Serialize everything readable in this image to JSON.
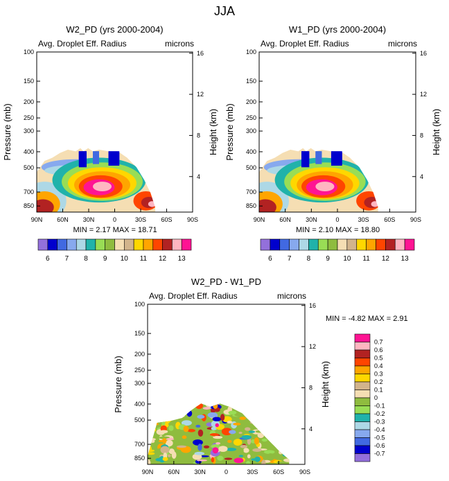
{
  "page_title": "JJA",
  "chart_data": [
    {
      "type": "contour",
      "title": "W2_PD (yrs 2000-2004)",
      "subtitle_left": "Avg. Droplet Eff. Radius",
      "subtitle_right": "microns",
      "ylabel": "Pressure (mb)",
      "y2label": "Height (km)",
      "x_ticks": [
        "90N",
        "60N",
        "30N",
        "0",
        "30S",
        "60S",
        "90S"
      ],
      "y_ticks": [
        "100",
        "150",
        "200",
        "250",
        "300",
        "400",
        "500",
        "700",
        "850"
      ],
      "y2_ticks": [
        "16",
        "12",
        "8",
        "4"
      ],
      "stats": {
        "min_label": "MIN =",
        "min": "2.17",
        "max_label": "MAX =",
        "max": "18.71"
      }
    },
    {
      "type": "contour",
      "title": "W1_PD (yrs 2000-2004)",
      "subtitle_left": "Avg. Droplet Eff. Radius",
      "subtitle_right": "microns",
      "ylabel": "Pressure (mb)",
      "y2label": "Height (km)",
      "x_ticks": [
        "90N",
        "60N",
        "30N",
        "0",
        "30S",
        "60S",
        "90S"
      ],
      "y_ticks": [
        "100",
        "150",
        "200",
        "250",
        "300",
        "400",
        "500",
        "700",
        "850"
      ],
      "y2_ticks": [
        "16",
        "12",
        "8",
        "4"
      ],
      "stats": {
        "min_label": "MIN =",
        "min": "2.10",
        "max_label": "MAX =",
        "max": "18.80"
      }
    },
    {
      "type": "contour",
      "title": "W2_PD - W1_PD",
      "subtitle_left": "Avg. Droplet Eff. Radius",
      "subtitle_right": "microns",
      "ylabel": "Pressure (mb)",
      "y2label": "Height (km)",
      "x_ticks": [
        "90N",
        "60N",
        "30N",
        "0",
        "30S",
        "60S",
        "90S"
      ],
      "y_ticks": [
        "100",
        "150",
        "200",
        "250",
        "300",
        "400",
        "500",
        "700",
        "850"
      ],
      "y2_ticks": [
        "16",
        "12",
        "8",
        "4"
      ],
      "stats": {
        "min_label": "MIN =",
        "min": "-4.82",
        "max_label": "MAX =",
        "max": "2.91"
      }
    }
  ],
  "colorbar_abs": {
    "labels": [
      "6",
      "7",
      "8",
      "9",
      "10",
      "11",
      "12",
      "13"
    ],
    "colors": [
      "#9370db",
      "#0000cd",
      "#4169e1",
      "#87a9ee",
      "#add8e6",
      "#20b2aa",
      "#99dd55",
      "#8fbc3f",
      "#f5deb3",
      "#d2b48c",
      "#ffd700",
      "#ffa500",
      "#ff4500",
      "#b22222",
      "#ffb6c1",
      "#ff1493"
    ]
  },
  "colorbar_diff": {
    "labels": [
      "0.7",
      "0.6",
      "0.5",
      "0.4",
      "0.3",
      "0.2",
      "0.1",
      "0",
      "-0.1",
      "-0.2",
      "-0.3",
      "-0.4",
      "-0.5",
      "-0.6",
      "-0.7"
    ],
    "colors": [
      "#ff1493",
      "#ffb6c1",
      "#b22222",
      "#ff4500",
      "#ffa500",
      "#ffd700",
      "#d2b48c",
      "#f5deb3",
      "#8fbc3f",
      "#99dd55",
      "#20b2aa",
      "#add8e6",
      "#87a9ee",
      "#4169e1",
      "#0000cd",
      "#9370db"
    ]
  }
}
